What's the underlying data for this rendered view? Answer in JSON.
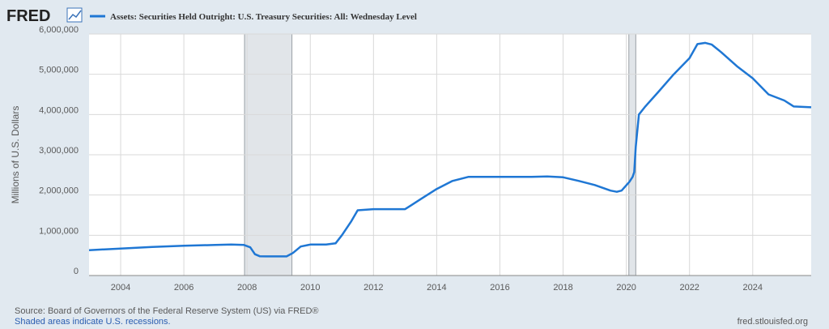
{
  "logo": {
    "text": "FRED"
  },
  "chart_data": {
    "type": "line",
    "title": "",
    "legend": "Assets: Securities Held Outright: U.S. Treasury Securities: All: Wednesday Level",
    "ylabel": "Millions of U.S. Dollars",
    "xlabel": "",
    "xlim": [
      2003,
      2025.85
    ],
    "ylim": [
      0,
      6000000
    ],
    "y_ticks": [
      {
        "value": 0,
        "label": "0"
      },
      {
        "value": 1000000,
        "label": "1,000,000"
      },
      {
        "value": 2000000,
        "label": "2,000,000"
      },
      {
        "value": 3000000,
        "label": "3,000,000"
      },
      {
        "value": 4000000,
        "label": "4,000,000"
      },
      {
        "value": 5000000,
        "label": "5,000,000"
      },
      {
        "value": 6000000,
        "label": "6,000,000"
      }
    ],
    "x_ticks": [
      {
        "value": 2004,
        "label": "2004"
      },
      {
        "value": 2006,
        "label": "2006"
      },
      {
        "value": 2008,
        "label": "2008"
      },
      {
        "value": 2010,
        "label": "2010"
      },
      {
        "value": 2012,
        "label": "2012"
      },
      {
        "value": 2014,
        "label": "2014"
      },
      {
        "value": 2016,
        "label": "2016"
      },
      {
        "value": 2018,
        "label": "2018"
      },
      {
        "value": 2020,
        "label": "2020"
      },
      {
        "value": 2022,
        "label": "2022"
      },
      {
        "value": 2024,
        "label": "2024"
      }
    ],
    "grid": true,
    "legend_position": "top-left",
    "line_color": "#1f77d4",
    "recessions": [
      [
        2007.92,
        2009.42
      ],
      [
        2020.08,
        2020.3
      ]
    ],
    "series": [
      {
        "x": [
          2003.0,
          2003.5,
          2004.0,
          2005.0,
          2006.0,
          2007.0,
          2007.5,
          2007.9,
          2008.1,
          2008.25,
          2008.4,
          2008.6,
          2009.0,
          2009.25,
          2009.45,
          2009.7,
          2010.0,
          2010.5,
          2010.8,
          2011.0,
          2011.3,
          2011.5,
          2012.0,
          2012.5,
          2013.0,
          2013.5,
          2014.0,
          2014.5,
          2015.0,
          2016.0,
          2017.0,
          2017.5,
          2018.0,
          2018.5,
          2019.0,
          2019.5,
          2019.7,
          2019.85,
          2020.1,
          2020.2,
          2020.25,
          2020.3,
          2020.4,
          2020.6,
          2021.0,
          2021.5,
          2022.0,
          2022.25,
          2022.5,
          2022.7,
          2023.0,
          2023.5,
          2024.0,
          2024.5,
          2025.0,
          2025.3,
          2025.85
        ],
        "y": [
          630000,
          650000,
          670000,
          710000,
          740000,
          760000,
          770000,
          760000,
          700000,
          530000,
          480000,
          475000,
          475000,
          475000,
          560000,
          720000,
          770000,
          770000,
          800000,
          1000000,
          1350000,
          1620000,
          1650000,
          1650000,
          1650000,
          1900000,
          2150000,
          2350000,
          2450000,
          2450000,
          2450000,
          2460000,
          2440000,
          2350000,
          2250000,
          2110000,
          2080000,
          2110000,
          2330000,
          2450000,
          2570000,
          3200000,
          4000000,
          4200000,
          4550000,
          5000000,
          5400000,
          5750000,
          5780000,
          5740000,
          5550000,
          5200000,
          4900000,
          4500000,
          4350000,
          4200000,
          4180000
        ]
      }
    ]
  },
  "footer": {
    "source": "Source: Board of Governors of the Federal Reserve System (US) via FRED®",
    "shaded": "Shaded areas indicate U.S. recessions.",
    "site": "fred.stlouisfed.org"
  }
}
